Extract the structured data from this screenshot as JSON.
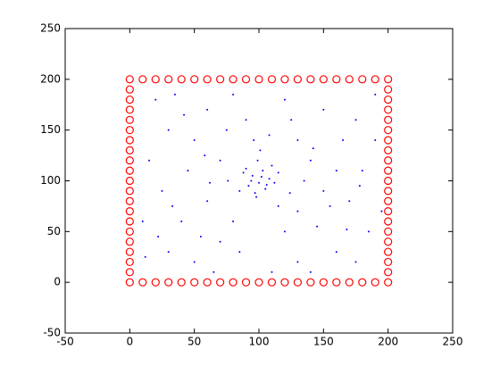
{
  "chart_data": {
    "type": "scatter",
    "xlim": [
      -50,
      250
    ],
    "ylim": [
      -50,
      250
    ],
    "xticks": [
      -50,
      0,
      50,
      100,
      150,
      200,
      250
    ],
    "yticks": [
      -50,
      0,
      50,
      100,
      150,
      200,
      250
    ],
    "grid": false,
    "box": true,
    "series": [
      {
        "color": "#0000ff",
        "marker": "dot",
        "x": [
          95,
          100,
          103,
          92,
          108,
          97,
          110,
          88,
          105,
          99,
          94,
          102,
          106,
          90,
          112,
          98,
          101,
          96,
          85,
          115,
          20,
          30,
          15,
          25,
          10,
          30,
          50,
          70,
          60,
          80,
          120,
          150,
          175,
          190,
          180,
          170,
          185,
          160,
          130,
          110,
          40,
          60,
          70,
          50,
          130,
          140,
          150,
          130,
          120,
          80,
          45,
          160,
          35,
          65,
          140,
          175,
          190,
          12,
          55,
          75,
          125,
          165,
          145,
          85,
          115,
          135,
          62,
          155,
          42,
          178,
          22,
          195,
          90,
          108,
          76,
          124,
          58,
          142,
          33,
          168
        ],
        "y": [
          105,
          98,
          110,
          95,
          102,
          88,
          115,
          108,
          92,
          120,
          100,
          104,
          96,
          112,
          98,
          84,
          130,
          140,
          90,
          108,
          180,
          150,
          120,
          90,
          60,
          30,
          20,
          40,
          170,
          185,
          180,
          170,
          160,
          140,
          110,
          80,
          50,
          30,
          20,
          10,
          60,
          80,
          120,
          140,
          140,
          120,
          90,
          70,
          50,
          60,
          110,
          110,
          185,
          10,
          10,
          20,
          185,
          25,
          45,
          150,
          160,
          140,
          55,
          30,
          75,
          100,
          98,
          75,
          165,
          95,
          45,
          70,
          160,
          145,
          100,
          88,
          125,
          132,
          75,
          52
        ]
      },
      {
        "color": "#ff0000",
        "marker": "circle",
        "x": [
          0,
          10,
          20,
          30,
          40,
          50,
          60,
          70,
          80,
          90,
          100,
          110,
          120,
          130,
          140,
          150,
          160,
          170,
          180,
          190,
          200,
          0,
          10,
          20,
          30,
          40,
          50,
          60,
          70,
          80,
          90,
          100,
          110,
          120,
          130,
          140,
          150,
          160,
          170,
          180,
          190,
          200,
          0,
          0,
          0,
          0,
          0,
          0,
          0,
          0,
          0,
          0,
          0,
          0,
          0,
          0,
          0,
          0,
          0,
          0,
          0,
          200,
          200,
          200,
          200,
          200,
          200,
          200,
          200,
          200,
          200,
          200,
          200,
          200,
          200,
          200,
          200,
          200,
          200,
          200
        ],
        "y": [
          200,
          200,
          200,
          200,
          200,
          200,
          200,
          200,
          200,
          200,
          200,
          200,
          200,
          200,
          200,
          200,
          200,
          200,
          200,
          200,
          200,
          0,
          0,
          0,
          0,
          0,
          0,
          0,
          0,
          0,
          0,
          0,
          0,
          0,
          0,
          0,
          0,
          0,
          0,
          0,
          0,
          0,
          10,
          20,
          30,
          40,
          50,
          60,
          70,
          80,
          90,
          100,
          110,
          120,
          130,
          140,
          150,
          160,
          170,
          180,
          190,
          10,
          20,
          30,
          40,
          50,
          60,
          70,
          80,
          90,
          100,
          110,
          120,
          130,
          140,
          150,
          160,
          170,
          180,
          190
        ]
      }
    ]
  }
}
